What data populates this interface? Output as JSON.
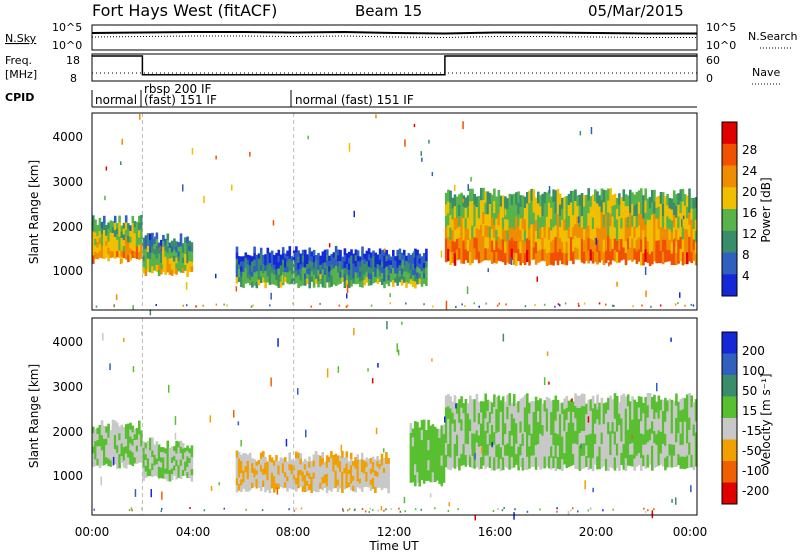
{
  "header": {
    "station": "Fort Hays West (fitACF)",
    "beam": "Beam 15",
    "date": "05/Mar/2015"
  },
  "nsky_panel": {
    "left_label": "N.Sky",
    "left_ticks": [
      "10^5",
      "10^0"
    ],
    "right_label": "N.Search",
    "right_ticks": [
      "10^5",
      "10^0"
    ]
  },
  "freq_panel": {
    "left_label_line1": "Freq.",
    "left_label_line2": "[MHz]",
    "left_ticks": [
      "18",
      "8"
    ],
    "right_label": "Nave",
    "right_ticks": [
      "60",
      "0"
    ]
  },
  "cpid_panel": {
    "label": "CPID",
    "modes": [
      {
        "start": 0,
        "end": 2,
        "text": "normal"
      },
      {
        "start": 2,
        "end": 8,
        "text": "rbsp 200 IF",
        "text2": "(fast) 151 IF"
      },
      {
        "start": 8,
        "end": 24,
        "text": "normal (fast) 151 IF"
      }
    ]
  },
  "x_axis": {
    "label": "Time UT",
    "ticks": [
      "00:00",
      "04:00",
      "08:00",
      "12:00",
      "16:00",
      "20:00",
      "00:00"
    ]
  },
  "power_panel": {
    "ylabel": "Slant Range [km]",
    "yticks": [
      "1000",
      "2000",
      "3000",
      "4000"
    ],
    "colorbar_label": "Power [dB]",
    "colorbar_ticks": [
      "4",
      "8",
      "12",
      "16",
      "20",
      "24",
      "28"
    ],
    "colors": [
      "#1428d8",
      "#2f5fbf",
      "#3a8d6a",
      "#58b34a",
      "#f0c000",
      "#f08c00",
      "#f05000",
      "#e00000"
    ]
  },
  "velocity_panel": {
    "ylabel": "Slant Range [km]",
    "yticks": [
      "1000",
      "2000",
      "3000",
      "4000"
    ],
    "colorbar_label": "Velocity [m s⁻¹]",
    "colorbar_ticks": [
      "200",
      "100",
      "50",
      "15",
      "-15",
      "-50",
      "-100",
      "-200"
    ],
    "colors": [
      "#1428d8",
      "#2f5fbf",
      "#3a8d6a",
      "#58c030",
      "#c8c8c8",
      "#f0a000",
      "#f06000",
      "#e00000"
    ]
  },
  "chart_data": [
    {
      "type": "line",
      "name_hint": "sky-noise",
      "x": [
        0,
        2,
        4,
        6,
        8,
        10,
        12,
        14,
        16,
        18,
        20,
        22,
        24
      ],
      "values": [
        3.4,
        3.5,
        3.6,
        3.6,
        3.5,
        3.6,
        3.4,
        3.3,
        3.5,
        3.5,
        3.4,
        3.3,
        3.3
      ],
      "ylim": [
        0,
        5
      ],
      "yscale": "log10"
    },
    {
      "type": "line",
      "name_hint": "frequency",
      "x": [
        0,
        2,
        2,
        14,
        14,
        24
      ],
      "values": [
        18,
        18,
        10.5,
        10.5,
        18,
        18
      ],
      "ylim": [
        8,
        18
      ]
    },
    {
      "type": "heatmap",
      "name_hint": "power",
      "xlim": [
        0,
        24
      ],
      "ylim": [
        180,
        4600
      ],
      "zlim": [
        0,
        30
      ],
      "regions": [
        {
          "t0": 0,
          "t1": 2,
          "r0": 1300,
          "r1": 2200,
          "z": 14
        },
        {
          "t0": 2,
          "t1": 4,
          "r0": 1000,
          "r1": 1800,
          "z": 10
        },
        {
          "t0": 5.7,
          "t1": 13.3,
          "r0": 750,
          "r1": 1500,
          "z": 5
        },
        {
          "t0": 14,
          "t1": 24,
          "r0": 1250,
          "r1": 2800,
          "z": 16
        }
      ]
    },
    {
      "type": "heatmap",
      "name_hint": "velocity",
      "xlim": [
        0,
        24
      ],
      "ylim": [
        180,
        4600
      ],
      "zlim": [
        -200,
        200
      ],
      "regions": [
        {
          "t0": 0,
          "t1": 2,
          "r0": 1300,
          "r1": 2200,
          "z": 0
        },
        {
          "t0": 2,
          "t1": 4,
          "r0": 1000,
          "r1": 1800,
          "z": 0
        },
        {
          "t0": 5.7,
          "t1": 11.8,
          "r0": 750,
          "r1": 1500,
          "z": -50
        },
        {
          "t0": 12.6,
          "t1": 14,
          "r0": 900,
          "r1": 2200,
          "z": 20
        },
        {
          "t0": 14,
          "t1": 24,
          "r0": 1250,
          "r1": 2800,
          "z": 0
        }
      ]
    }
  ]
}
